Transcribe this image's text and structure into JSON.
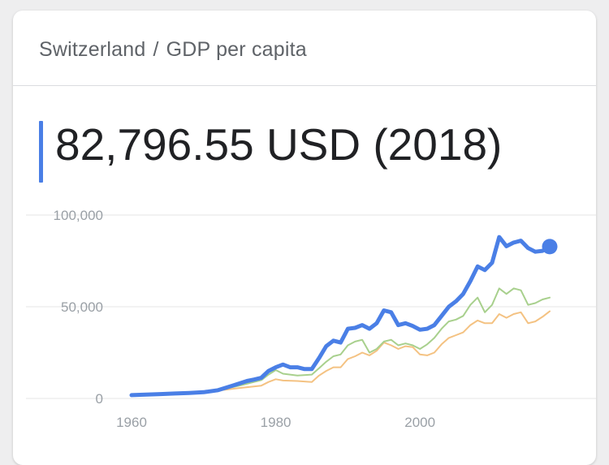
{
  "breadcrumb": {
    "country": "Switzerland",
    "separator": "/",
    "metric": "GDP per capita"
  },
  "headline": {
    "value": "82,796.55 USD (2018)"
  },
  "colors": {
    "accent": "#4a7fe6",
    "compare1": "#a8d08d",
    "compare2": "#f4c282",
    "grid": "#e6e6e6",
    "tick": "#9aa0a6"
  },
  "chart_data": {
    "type": "line",
    "xlim": [
      1960,
      2018
    ],
    "ylim": [
      0,
      100000
    ],
    "xticks": [
      1960,
      1980,
      2000
    ],
    "xtick_labels": [
      "1960",
      "1980",
      "2000"
    ],
    "yticks": [
      0,
      50000,
      100000
    ],
    "ytick_labels": [
      "0",
      "50,000",
      "100,000"
    ],
    "grid": true,
    "series": [
      {
        "color": "#f4c282",
        "width": 2,
        "x": [
          1960,
          1965,
          1970,
          1972,
          1975,
          1978,
          1979,
          1980,
          1981,
          1983,
          1985,
          1986,
          1987,
          1988,
          1989,
          1990,
          1991,
          1992,
          1993,
          1994,
          1995,
          1996,
          1997,
          1998,
          1999,
          2000,
          2001,
          2002,
          2003,
          2004,
          2005,
          2006,
          2007,
          2008,
          2009,
          2010,
          2011,
          2012,
          2013,
          2014,
          2015,
          2016,
          2017,
          2018
        ],
        "y": [
          1900,
          2700,
          3600,
          4300,
          5700,
          7000,
          9000,
          10500,
          9800,
          9500,
          9000,
          12500,
          15000,
          17000,
          17000,
          21500,
          23000,
          25000,
          23500,
          26000,
          30500,
          29000,
          27000,
          28500,
          28000,
          24000,
          23500,
          25000,
          29500,
          33000,
          34500,
          36000,
          40000,
          42500,
          41000,
          41000,
          46000,
          44000,
          46000,
          47000,
          41000,
          42000,
          44500,
          47500
        ]
      },
      {
        "color": "#a8d08d",
        "width": 2,
        "x": [
          1960,
          1965,
          1970,
          1972,
          1975,
          1978,
          1979,
          1980,
          1981,
          1983,
          1985,
          1986,
          1987,
          1988,
          1989,
          1990,
          1991,
          1992,
          1993,
          1994,
          1995,
          1996,
          1997,
          1998,
          1999,
          2000,
          2001,
          2002,
          2003,
          2004,
          2005,
          2006,
          2007,
          2008,
          2009,
          2010,
          2011,
          2012,
          2013,
          2014,
          2015,
          2016,
          2017,
          2018
        ],
        "y": [
          1900,
          2700,
          3600,
          4500,
          7000,
          10000,
          13000,
          15500,
          13500,
          12500,
          13000,
          16500,
          20000,
          23000,
          24000,
          29000,
          31000,
          32000,
          25000,
          27000,
          31000,
          32000,
          29000,
          30000,
          29000,
          27000,
          29500,
          33000,
          38000,
          42000,
          43000,
          45000,
          51000,
          55000,
          47000,
          51000,
          60000,
          57000,
          60000,
          59000,
          51000,
          52000,
          54000,
          55000
        ]
      },
      {
        "color": "#4a7fe6",
        "width": 5,
        "x": [
          1960,
          1962,
          1964,
          1966,
          1968,
          1970,
          1972,
          1974,
          1976,
          1977,
          1978,
          1979,
          1980,
          1981,
          1982,
          1983,
          1984,
          1985,
          1986,
          1987,
          1988,
          1989,
          1990,
          1991,
          1992,
          1993,
          1994,
          1995,
          1996,
          1997,
          1998,
          1999,
          2000,
          2001,
          2002,
          2003,
          2004,
          2005,
          2006,
          2007,
          2008,
          2009,
          2010,
          2011,
          2012,
          2013,
          2014,
          2015,
          2016,
          2017,
          2018
        ],
        "y": [
          1800,
          2100,
          2400,
          2700,
          3000,
          3400,
          4500,
          7000,
          9500,
          10300,
          11300,
          15000,
          17000,
          18500,
          17000,
          17000,
          16000,
          16000,
          22000,
          28500,
          31500,
          30500,
          38000,
          38500,
          40000,
          38000,
          41000,
          48000,
          47000,
          40000,
          41000,
          39500,
          37500,
          38000,
          40000,
          45000,
          50000,
          53000,
          57000,
          64000,
          72000,
          70000,
          74000,
          88000,
          83000,
          85000,
          86000,
          82000,
          80000,
          80500,
          82796.55
        ]
      }
    ],
    "endpoint_marker": {
      "x": 2018,
      "y": 82796.55,
      "color": "#4a7fe6"
    }
  }
}
